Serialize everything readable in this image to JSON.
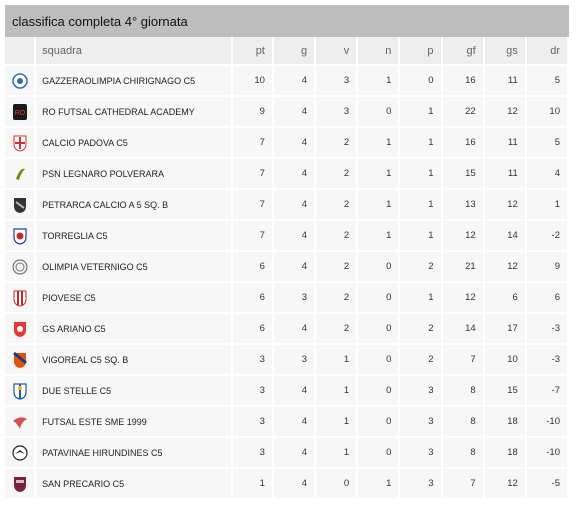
{
  "title": "classifica completa 4° giornata",
  "columns": {
    "team": "squadra",
    "pt": "pt",
    "g": "g",
    "v": "v",
    "n": "n",
    "p": "p",
    "gf": "gf",
    "gs": "gs",
    "dr": "dr"
  },
  "rows": [
    {
      "team": "GAZZERAOLIMPIA CHIRIGNAGO C5",
      "pt": "10",
      "g": "4",
      "v": "3",
      "n": "1",
      "p": "0",
      "gf": "16",
      "gs": "11",
      "dr": "5",
      "logo": "ball-crest-icon",
      "color": "#2f6fb0"
    },
    {
      "team": "RO FUTSAL CATHEDRAL ACADEMY",
      "pt": "9",
      "g": "4",
      "v": "3",
      "n": "0",
      "p": "1",
      "gf": "22",
      "gs": "12",
      "dr": "10",
      "logo": "ro-crest-icon",
      "color": "#1a1a1a"
    },
    {
      "team": "CALCIO PADOVA C5",
      "pt": "7",
      "g": "4",
      "v": "2",
      "n": "1",
      "p": "1",
      "gf": "16",
      "gs": "11",
      "dr": "5",
      "logo": "cross-shield-icon",
      "color": "#d32f2f"
    },
    {
      "team": "PSN LEGNARO POLVERARA",
      "pt": "7",
      "g": "4",
      "v": "2",
      "n": "1",
      "p": "1",
      "gf": "15",
      "gs": "11",
      "dr": "4",
      "logo": "bird-crest-icon",
      "color": "#7a8a1e"
    },
    {
      "team": "PETRARCA CALCIO A 5 Sq. B",
      "pt": "7",
      "g": "4",
      "v": "2",
      "n": "1",
      "p": "1",
      "gf": "13",
      "gs": "12",
      "dr": "1",
      "logo": "dark-shield-icon",
      "color": "#333333"
    },
    {
      "team": "TORREGLIA C5",
      "pt": "7",
      "g": "4",
      "v": "2",
      "n": "1",
      "p": "1",
      "gf": "12",
      "gs": "14",
      "dr": "-2",
      "logo": "red-blue-crest-icon",
      "color": "#c62828"
    },
    {
      "team": "OLIMPIA VETERNIGO C5",
      "pt": "6",
      "g": "4",
      "v": "2",
      "n": "0",
      "p": "2",
      "gf": "21",
      "gs": "12",
      "dr": "9",
      "logo": "round-crest-icon",
      "color": "#777777"
    },
    {
      "team": "PIOVESE C5",
      "pt": "6",
      "g": "3",
      "v": "2",
      "n": "0",
      "p": "1",
      "gf": "12",
      "gs": "6",
      "dr": "6",
      "logo": "striped-shield-icon",
      "color": "#c62828"
    },
    {
      "team": "GS ARIANO C5",
      "pt": "6",
      "g": "4",
      "v": "2",
      "n": "0",
      "p": "2",
      "gf": "14",
      "gs": "17",
      "dr": "-3",
      "logo": "red-shield-icon",
      "color": "#e53935"
    },
    {
      "team": "VIGOREAL C5 Sq. B",
      "pt": "3",
      "g": "3",
      "v": "1",
      "n": "0",
      "p": "2",
      "gf": "7",
      "gs": "10",
      "dr": "-3",
      "logo": "orange-shield-icon",
      "color": "#e65100"
    },
    {
      "team": "DUE STELLE C5",
      "pt": "3",
      "g": "4",
      "v": "1",
      "n": "0",
      "p": "3",
      "gf": "8",
      "gs": "15",
      "dr": "-7",
      "logo": "blue-white-shield-icon",
      "color": "#1e5aa8"
    },
    {
      "team": "FUTSAL ESTE SME 1999",
      "pt": "3",
      "g": "4",
      "v": "1",
      "n": "0",
      "p": "3",
      "gf": "8",
      "gs": "18",
      "dr": "-10",
      "logo": "swoosh-crest-icon",
      "color": "#d32f2f"
    },
    {
      "team": "PATAVINAE HIRUNDINES C5",
      "pt": "3",
      "g": "4",
      "v": "1",
      "n": "0",
      "p": "3",
      "gf": "8",
      "gs": "18",
      "dr": "-10",
      "logo": "swallow-crest-icon",
      "color": "#222222"
    },
    {
      "team": "SAN PRECARIO C5",
      "pt": "1",
      "g": "4",
      "v": "0",
      "n": "1",
      "p": "3",
      "gf": "7",
      "gs": "12",
      "dr": "-5",
      "logo": "maroon-crest-icon",
      "color": "#7b1f3a"
    }
  ]
}
